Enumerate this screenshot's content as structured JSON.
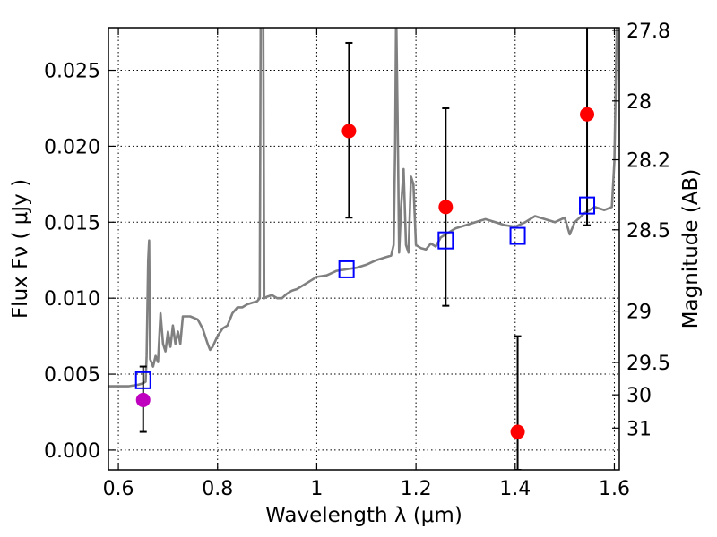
{
  "chart_data": {
    "type": "scatter",
    "xlabel": "Wavelength  λ (μm)",
    "ylabel": "Flux  Fν  ( μJy )",
    "ylabel_right": "Magnitude (AB)",
    "xlim": [
      0.58,
      1.61
    ],
    "ylim": [
      -0.0013,
      0.0278
    ],
    "x_ticks": [
      0.6,
      0.8,
      1.0,
      1.2,
      1.4,
      1.6
    ],
    "x_tick_labels": [
      "0.6",
      "0.8",
      "1",
      "1.2",
      "1.4",
      "1.6"
    ],
    "y_ticks": [
      0.0,
      0.005,
      0.01,
      0.015,
      0.02,
      0.025
    ],
    "y_tick_labels": [
      "0.000",
      "0.005",
      "0.010",
      "0.015",
      "0.020",
      "0.025"
    ],
    "right_ticks": [
      {
        "label": "27.8",
        "flux": 0.02763
      },
      {
        "label": "28",
        "flux": 0.02298
      },
      {
        "label": "28.2",
        "flux": 0.01911
      },
      {
        "label": "28.5",
        "flux": 0.0145
      },
      {
        "label": "29",
        "flux": 0.00915
      },
      {
        "label": "29.5",
        "flux": 0.00577
      },
      {
        "label": "30",
        "flux": 0.00364
      },
      {
        "label": "31",
        "flux": 0.00145
      }
    ],
    "grid": true,
    "series": [
      {
        "style": "line",
        "color": "#808080",
        "points": [
          [
            0.58,
            0.0042
          ],
          [
            0.6,
            0.0042
          ],
          [
            0.62,
            0.0042
          ],
          [
            0.64,
            0.0043
          ],
          [
            0.65,
            0.0044
          ],
          [
            0.655,
            0.0045
          ],
          [
            0.657,
            0.0062
          ],
          [
            0.66,
            0.0125
          ],
          [
            0.662,
            0.0138
          ],
          [
            0.664,
            0.006
          ],
          [
            0.67,
            0.0055
          ],
          [
            0.675,
            0.0062
          ],
          [
            0.68,
            0.0058
          ],
          [
            0.685,
            0.009
          ],
          [
            0.69,
            0.007
          ],
          [
            0.695,
            0.0065
          ],
          [
            0.7,
            0.0078
          ],
          [
            0.705,
            0.0068
          ],
          [
            0.71,
            0.0082
          ],
          [
            0.715,
            0.007
          ],
          [
            0.72,
            0.0078
          ],
          [
            0.725,
            0.007
          ],
          [
            0.73,
            0.0088
          ],
          [
            0.745,
            0.0088
          ],
          [
            0.76,
            0.0086
          ],
          [
            0.77,
            0.008
          ],
          [
            0.78,
            0.007
          ],
          [
            0.785,
            0.0066
          ],
          [
            0.79,
            0.0068
          ],
          [
            0.8,
            0.0075
          ],
          [
            0.81,
            0.008
          ],
          [
            0.82,
            0.0082
          ],
          [
            0.83,
            0.009
          ],
          [
            0.84,
            0.0094
          ],
          [
            0.85,
            0.0094
          ],
          [
            0.86,
            0.0096
          ],
          [
            0.87,
            0.0097
          ],
          [
            0.88,
            0.0098
          ],
          [
            0.885,
            0.01
          ],
          [
            0.887,
            0.029
          ],
          [
            0.892,
            0.029
          ],
          [
            0.894,
            0.01
          ],
          [
            0.9,
            0.0101
          ],
          [
            0.91,
            0.0102
          ],
          [
            0.92,
            0.01
          ],
          [
            0.93,
            0.01
          ],
          [
            0.94,
            0.0103
          ],
          [
            0.95,
            0.0105
          ],
          [
            0.96,
            0.0106
          ],
          [
            0.97,
            0.0108
          ],
          [
            0.98,
            0.011
          ],
          [
            0.99,
            0.0112
          ],
          [
            1.0,
            0.0114
          ],
          [
            1.02,
            0.0115
          ],
          [
            1.04,
            0.0118
          ],
          [
            1.06,
            0.0119
          ],
          [
            1.08,
            0.012
          ],
          [
            1.1,
            0.0122
          ],
          [
            1.12,
            0.0125
          ],
          [
            1.14,
            0.0127
          ],
          [
            1.15,
            0.0128
          ],
          [
            1.155,
            0.0135
          ],
          [
            1.158,
            0.02
          ],
          [
            1.16,
            0.029
          ],
          [
            1.163,
            0.022
          ],
          [
            1.166,
            0.013
          ],
          [
            1.17,
            0.016
          ],
          [
            1.175,
            0.0185
          ],
          [
            1.18,
            0.0135
          ],
          [
            1.185,
            0.013
          ],
          [
            1.19,
            0.018
          ],
          [
            1.195,
            0.0175
          ],
          [
            1.2,
            0.0135
          ],
          [
            1.21,
            0.0133
          ],
          [
            1.22,
            0.0132
          ],
          [
            1.23,
            0.0136
          ],
          [
            1.24,
            0.0134
          ],
          [
            1.25,
            0.014
          ],
          [
            1.26,
            0.0142
          ],
          [
            1.27,
            0.0144
          ],
          [
            1.28,
            0.0146
          ],
          [
            1.3,
            0.0148
          ],
          [
            1.32,
            0.015
          ],
          [
            1.34,
            0.0152
          ],
          [
            1.36,
            0.015
          ],
          [
            1.38,
            0.0148
          ],
          [
            1.4,
            0.0147
          ],
          [
            1.42,
            0.015
          ],
          [
            1.44,
            0.0154
          ],
          [
            1.46,
            0.0152
          ],
          [
            1.48,
            0.015
          ],
          [
            1.5,
            0.0153
          ],
          [
            1.51,
            0.0142
          ],
          [
            1.52,
            0.015
          ],
          [
            1.54,
            0.0156
          ],
          [
            1.56,
            0.016
          ],
          [
            1.58,
            0.0158
          ],
          [
            1.595,
            0.016
          ],
          [
            1.6,
            0.019
          ],
          [
            1.605,
            0.028
          ],
          [
            1.61,
            0.029
          ]
        ]
      },
      {
        "style": "markers",
        "marker": "circle",
        "color": "#ff0000",
        "points": [
          {
            "x": 1.065,
            "y": 0.021,
            "err_lo": 0.0153,
            "err_hi": 0.0268
          },
          {
            "x": 1.26,
            "y": 0.016,
            "err_lo": 0.0095,
            "err_hi": 0.0225
          },
          {
            "x": 1.405,
            "y": 0.0012,
            "err_lo": -0.0013,
            "err_hi": 0.0075
          },
          {
            "x": 1.545,
            "y": 0.0221,
            "err_lo": 0.0148,
            "err_hi": 0.029
          }
        ]
      },
      {
        "style": "markers",
        "marker": "circle",
        "color": "#bf00bf",
        "points": [
          {
            "x": 0.65,
            "y": 0.0033,
            "err_lo": 0.0012,
            "err_hi": 0.0055
          }
        ]
      },
      {
        "style": "markers",
        "marker": "square",
        "color": "#0000ff",
        "points": [
          {
            "x": 0.65,
            "y": 0.0046
          },
          {
            "x": 1.06,
            "y": 0.0119
          },
          {
            "x": 1.26,
            "y": 0.0138
          },
          {
            "x": 1.405,
            "y": 0.0141
          },
          {
            "x": 1.545,
            "y": 0.0161
          }
        ]
      }
    ]
  }
}
